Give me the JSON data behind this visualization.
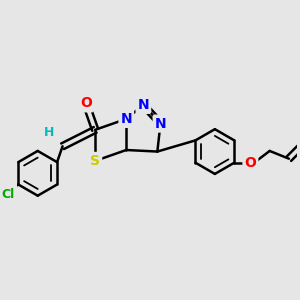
{
  "bg_color": "#e6e6e6",
  "atom_colors": {
    "N": "#0000ff",
    "O": "#ff0000",
    "S": "#cccc00",
    "Cl": "#00aa00",
    "C": "#000000",
    "H": "#00bbbb"
  },
  "bond_color": "#000000",
  "bond_width": 1.8,
  "fig_w": 3.0,
  "fig_h": 3.0,
  "dpi": 100,
  "xlim": [
    -3.5,
    5.5
  ],
  "ylim": [
    -2.5,
    2.5
  ]
}
